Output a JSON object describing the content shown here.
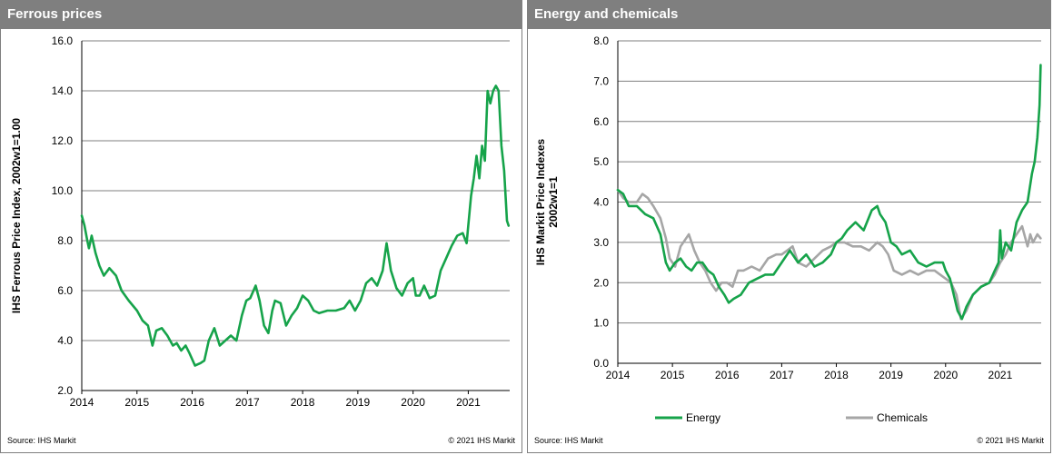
{
  "colors": {
    "energy": "#16a34a",
    "chemicals": "#a6a6a6",
    "ferrous": "#16a34a",
    "grid": "#7f7f7f",
    "header": "#7f7f7f"
  },
  "left": {
    "title": "Ferrous prices",
    "source": "Source: IHS Markit",
    "copyright": "© 2021 IHS Markit"
  },
  "right": {
    "title": "Energy and chemicals",
    "source": "Source: IHS Markit",
    "copyright": "© 2021 IHS Markit"
  },
  "chart_data": [
    {
      "type": "line",
      "title": "Ferrous prices",
      "xlabel": "",
      "ylabel": "IHS Ferrous Price Index, 2002w1=1.00",
      "xlim": [
        2014,
        2021.75
      ],
      "ylim": [
        2.0,
        16.0
      ],
      "x_ticks": [
        "2014",
        "2015",
        "2016",
        "2017",
        "2018",
        "2019",
        "2020",
        "2021"
      ],
      "y_ticks": [
        "2.0",
        "4.0",
        "6.0",
        "8.0",
        "10.0",
        "12.0",
        "14.0",
        "16.0"
      ],
      "grid": "horizontal",
      "series": [
        {
          "color_key": "ferrous",
          "x": [
            2014.0,
            2014.05,
            2014.1,
            2014.13,
            2014.18,
            2014.25,
            2014.32,
            2014.4,
            2014.5,
            2014.62,
            2014.72,
            2014.85,
            2015.0,
            2015.1,
            2015.2,
            2015.28,
            2015.35,
            2015.45,
            2015.55,
            2015.65,
            2015.72,
            2015.8,
            2015.88,
            2015.95,
            2016.05,
            2016.15,
            2016.22,
            2016.3,
            2016.4,
            2016.5,
            2016.6,
            2016.7,
            2016.8,
            2016.9,
            2016.98,
            2017.05,
            2017.15,
            2017.22,
            2017.3,
            2017.38,
            2017.45,
            2017.5,
            2017.6,
            2017.7,
            2017.8,
            2017.9,
            2018.0,
            2018.1,
            2018.2,
            2018.3,
            2018.45,
            2018.6,
            2018.75,
            2018.85,
            2018.95,
            2019.05,
            2019.15,
            2019.25,
            2019.35,
            2019.45,
            2019.52,
            2019.6,
            2019.7,
            2019.8,
            2019.9,
            2020.0,
            2020.05,
            2020.12,
            2020.2,
            2020.3,
            2020.4,
            2020.5,
            2020.6,
            2020.7,
            2020.8,
            2020.9,
            2020.97,
            2021.05,
            2021.1,
            2021.15,
            2021.2,
            2021.25,
            2021.3,
            2021.35,
            2021.4,
            2021.45,
            2021.5,
            2021.55,
            2021.6,
            2021.65,
            2021.7,
            2021.73
          ],
          "y": [
            9.0,
            8.6,
            8.0,
            7.7,
            8.2,
            7.5,
            7.0,
            6.6,
            6.9,
            6.6,
            6.0,
            5.6,
            5.2,
            4.8,
            4.6,
            3.8,
            4.4,
            4.5,
            4.2,
            3.8,
            3.9,
            3.6,
            3.8,
            3.5,
            3.0,
            3.1,
            3.2,
            4.0,
            4.5,
            3.8,
            4.0,
            4.2,
            4.0,
            5.0,
            5.6,
            5.7,
            6.2,
            5.6,
            4.6,
            4.3,
            5.2,
            5.6,
            5.5,
            4.6,
            5.0,
            5.3,
            5.8,
            5.6,
            5.2,
            5.1,
            5.2,
            5.2,
            5.3,
            5.6,
            5.2,
            5.6,
            6.3,
            6.5,
            6.2,
            6.8,
            7.9,
            6.8,
            6.1,
            5.8,
            6.3,
            6.5,
            5.8,
            5.8,
            6.2,
            5.7,
            5.8,
            6.8,
            7.3,
            7.8,
            8.2,
            8.3,
            7.9,
            9.8,
            10.5,
            11.4,
            10.5,
            11.8,
            11.2,
            14.0,
            13.5,
            14.0,
            14.2,
            14.0,
            11.8,
            10.8,
            8.8,
            8.6
          ]
        }
      ]
    },
    {
      "type": "line",
      "title": "Energy and chemicals",
      "xlabel": "",
      "ylabel": "IHS Markit Price Indexes 2002w1=1",
      "xlim": [
        2014,
        2021.75
      ],
      "ylim": [
        0.0,
        8.0
      ],
      "x_ticks": [
        "2014",
        "2015",
        "2016",
        "2017",
        "2018",
        "2019",
        "2020",
        "2021"
      ],
      "y_ticks": [
        "0.0",
        "1.0",
        "2.0",
        "3.0",
        "4.0",
        "5.0",
        "6.0",
        "7.0",
        "8.0"
      ],
      "grid": "horizontal",
      "legend": "bottom",
      "series": [
        {
          "name": "Energy",
          "color_key": "energy",
          "x": [
            2014.0,
            2014.1,
            2014.2,
            2014.35,
            2014.5,
            2014.65,
            2014.78,
            2014.88,
            2014.95,
            2015.05,
            2015.15,
            2015.25,
            2015.35,
            2015.45,
            2015.55,
            2015.65,
            2015.75,
            2015.85,
            2015.95,
            2016.03,
            2016.12,
            2016.25,
            2016.4,
            2016.55,
            2016.7,
            2016.85,
            2016.95,
            2017.05,
            2017.15,
            2017.3,
            2017.45,
            2017.6,
            2017.75,
            2017.9,
            2018.0,
            2018.1,
            2018.2,
            2018.35,
            2018.5,
            2018.65,
            2018.75,
            2018.8,
            2018.9,
            2019.0,
            2019.1,
            2019.2,
            2019.35,
            2019.5,
            2019.65,
            2019.8,
            2019.95,
            2020.0,
            2020.08,
            2020.15,
            2020.22,
            2020.3,
            2020.38,
            2020.5,
            2020.65,
            2020.8,
            2020.9,
            2020.97,
            2021.0,
            2021.03,
            2021.1,
            2021.2,
            2021.3,
            2021.4,
            2021.5,
            2021.58,
            2021.63,
            2021.68,
            2021.72,
            2021.74
          ],
          "y": [
            4.3,
            4.2,
            3.9,
            3.9,
            3.7,
            3.6,
            3.2,
            2.5,
            2.3,
            2.5,
            2.6,
            2.4,
            2.3,
            2.5,
            2.5,
            2.3,
            2.2,
            1.9,
            1.7,
            1.5,
            1.6,
            1.7,
            2.0,
            2.1,
            2.2,
            2.2,
            2.4,
            2.6,
            2.8,
            2.5,
            2.7,
            2.4,
            2.5,
            2.7,
            3.0,
            3.1,
            3.3,
            3.5,
            3.3,
            3.8,
            3.9,
            3.7,
            3.5,
            3.0,
            2.9,
            2.7,
            2.8,
            2.5,
            2.4,
            2.5,
            2.5,
            2.3,
            2.1,
            1.7,
            1.3,
            1.1,
            1.4,
            1.7,
            1.9,
            2.0,
            2.3,
            2.5,
            3.3,
            2.6,
            3.0,
            2.8,
            3.5,
            3.8,
            4.0,
            4.7,
            5.0,
            5.6,
            6.4,
            7.4
          ]
        },
        {
          "name": "Chemicals",
          "color_key": "chemicals",
          "x": [
            2014.0,
            2014.1,
            2014.2,
            2014.35,
            2014.45,
            2014.55,
            2014.65,
            2014.78,
            2014.88,
            2014.95,
            2015.05,
            2015.15,
            2015.3,
            2015.4,
            2015.5,
            2015.6,
            2015.7,
            2015.8,
            2015.9,
            2016.0,
            2016.1,
            2016.2,
            2016.3,
            2016.45,
            2016.6,
            2016.75,
            2016.9,
            2017.0,
            2017.1,
            2017.2,
            2017.3,
            2017.45,
            2017.6,
            2017.75,
            2017.9,
            2018.0,
            2018.15,
            2018.3,
            2018.45,
            2018.6,
            2018.75,
            2018.85,
            2018.95,
            2019.05,
            2019.2,
            2019.35,
            2019.5,
            2019.65,
            2019.8,
            2019.9,
            2020.0,
            2020.1,
            2020.2,
            2020.28,
            2020.38,
            2020.5,
            2020.65,
            2020.8,
            2020.9,
            2021.0,
            2021.1,
            2021.2,
            2021.3,
            2021.4,
            2021.5,
            2021.55,
            2021.6,
            2021.68,
            2021.74
          ],
          "y": [
            4.3,
            4.1,
            4.0,
            4.0,
            4.2,
            4.1,
            3.9,
            3.6,
            3.1,
            2.6,
            2.4,
            2.9,
            3.2,
            2.8,
            2.5,
            2.3,
            2.0,
            1.8,
            2.0,
            2.0,
            1.9,
            2.3,
            2.3,
            2.4,
            2.3,
            2.6,
            2.7,
            2.7,
            2.8,
            2.9,
            2.5,
            2.4,
            2.6,
            2.8,
            2.9,
            3.0,
            3.0,
            2.9,
            2.9,
            2.8,
            3.0,
            2.9,
            2.7,
            2.3,
            2.2,
            2.3,
            2.2,
            2.3,
            2.3,
            2.2,
            2.1,
            2.0,
            1.7,
            1.1,
            1.3,
            1.7,
            1.9,
            2.0,
            2.2,
            2.5,
            2.7,
            3.0,
            3.2,
            3.4,
            2.9,
            3.2,
            3.0,
            3.2,
            3.1
          ]
        }
      ]
    }
  ]
}
